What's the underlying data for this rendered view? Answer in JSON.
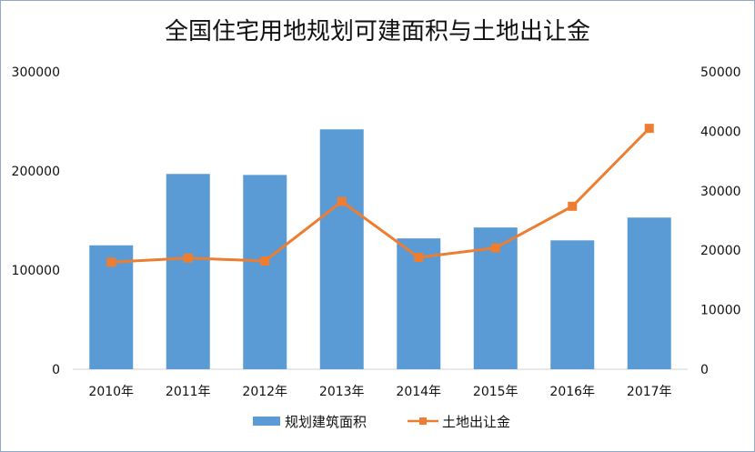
{
  "chart_data": {
    "type": "bar",
    "title": "全国住宅用地规划可建面积与土地出让金",
    "categories": [
      "2010年",
      "2011年",
      "2012年",
      "2013年",
      "2014年",
      "2015年",
      "2016年",
      "2017年"
    ],
    "series": [
      {
        "name": "规划建筑面积",
        "type": "bar",
        "axis": "left",
        "color": "#5B9BD5",
        "values": [
          125000,
          197000,
          196000,
          242000,
          132000,
          143000,
          130000,
          153000
        ]
      },
      {
        "name": "土地出让金",
        "type": "line",
        "axis": "right",
        "color": "#ED7D31",
        "values": [
          18000,
          18700,
          18200,
          28200,
          18800,
          20400,
          27400,
          40500
        ]
      }
    ],
    "ylim_left": [
      0,
      300000
    ],
    "ylim_right": [
      0,
      50000
    ],
    "yticks_left": [
      "0",
      "100000",
      "200000",
      "300000"
    ],
    "yticks_right": [
      "0",
      "10000",
      "20000",
      "30000",
      "40000",
      "50000"
    ],
    "grid": false,
    "legend_position": "bottom"
  }
}
